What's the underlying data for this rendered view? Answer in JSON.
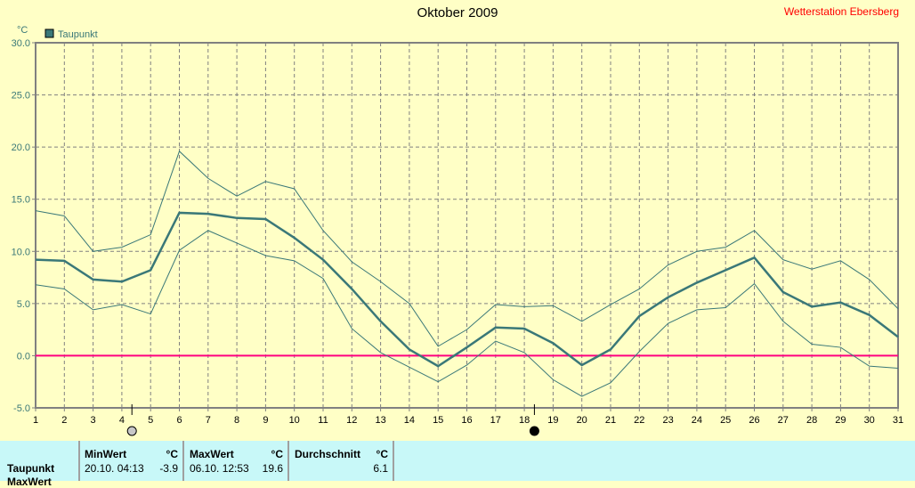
{
  "header": {
    "title": "Oktober 2009",
    "station": "Wetterstation Ebersberg"
  },
  "chart_data": {
    "type": "line",
    "title": "Oktober 2009",
    "ylabel": "°C",
    "ylim": [
      -5,
      30
    ],
    "yticks": [
      "-5.0",
      "0.0",
      "5.0",
      "10.0",
      "15.0",
      "20.0",
      "25.0",
      "30.0"
    ],
    "x": [
      1,
      2,
      3,
      4,
      5,
      6,
      7,
      8,
      9,
      10,
      11,
      12,
      13,
      14,
      15,
      16,
      17,
      18,
      19,
      20,
      21,
      22,
      23,
      24,
      25,
      26,
      27,
      28,
      29,
      30,
      31
    ],
    "xlim": [
      1,
      31
    ],
    "grid": true,
    "legend": "top-left",
    "series": [
      {
        "name": "Taupunkt",
        "color": "#3a7878",
        "values": [
          9.2,
          9.1,
          7.3,
          7.1,
          8.2,
          13.7,
          13.6,
          13.2,
          13.1,
          11.3,
          9.2,
          6.4,
          3.3,
          0.6,
          -1.0,
          0.8,
          2.7,
          2.6,
          1.2,
          -0.9,
          0.6,
          3.8,
          5.6,
          7.0,
          8.2,
          9.4,
          6.1,
          4.7,
          5.1,
          3.9,
          1.8
        ]
      },
      {
        "color": "#3a7878",
        "values": [
          13.9,
          13.4,
          10.0,
          10.4,
          11.6,
          19.6,
          17.0,
          15.3,
          16.7,
          16.0,
          12.0,
          9.0,
          7.1,
          5.0,
          0.9,
          2.5,
          4.9,
          4.7,
          4.8,
          3.3,
          4.9,
          6.4,
          8.7,
          10.0,
          10.4,
          12.0,
          9.2,
          8.3,
          9.1,
          7.3,
          4.5
        ]
      },
      {
        "color": "#3a7878",
        "values": [
          6.8,
          6.4,
          4.4,
          4.9,
          4.0,
          10.1,
          12.0,
          10.8,
          9.6,
          9.1,
          7.4,
          2.6,
          0.3,
          -1.1,
          -2.5,
          -0.9,
          1.4,
          0.3,
          -2.3,
          -3.9,
          -2.6,
          0.4,
          3.1,
          4.4,
          4.6,
          6.9,
          3.3,
          1.1,
          0.8,
          -1.0,
          -1.2
        ]
      }
    ],
    "zero_line_color": "#ff0080",
    "moon_phases": [
      {
        "day": 4.35,
        "phase": "full-moon"
      },
      {
        "day": 18.35,
        "phase": "new-moon"
      }
    ]
  },
  "table": {
    "row_label": "Taupunkt",
    "row_label_2": "MaxWert",
    "min": {
      "header": "MinWert",
      "unit": "°C",
      "time": "20.10.  04:13",
      "value": "-3.9"
    },
    "max": {
      "header": "MaxWert",
      "unit": "°C",
      "time": "06.10.  12:53",
      "value": "19.6"
    },
    "avg": {
      "header": "Durchschnitt",
      "unit": "°C",
      "value": "6.1"
    }
  }
}
